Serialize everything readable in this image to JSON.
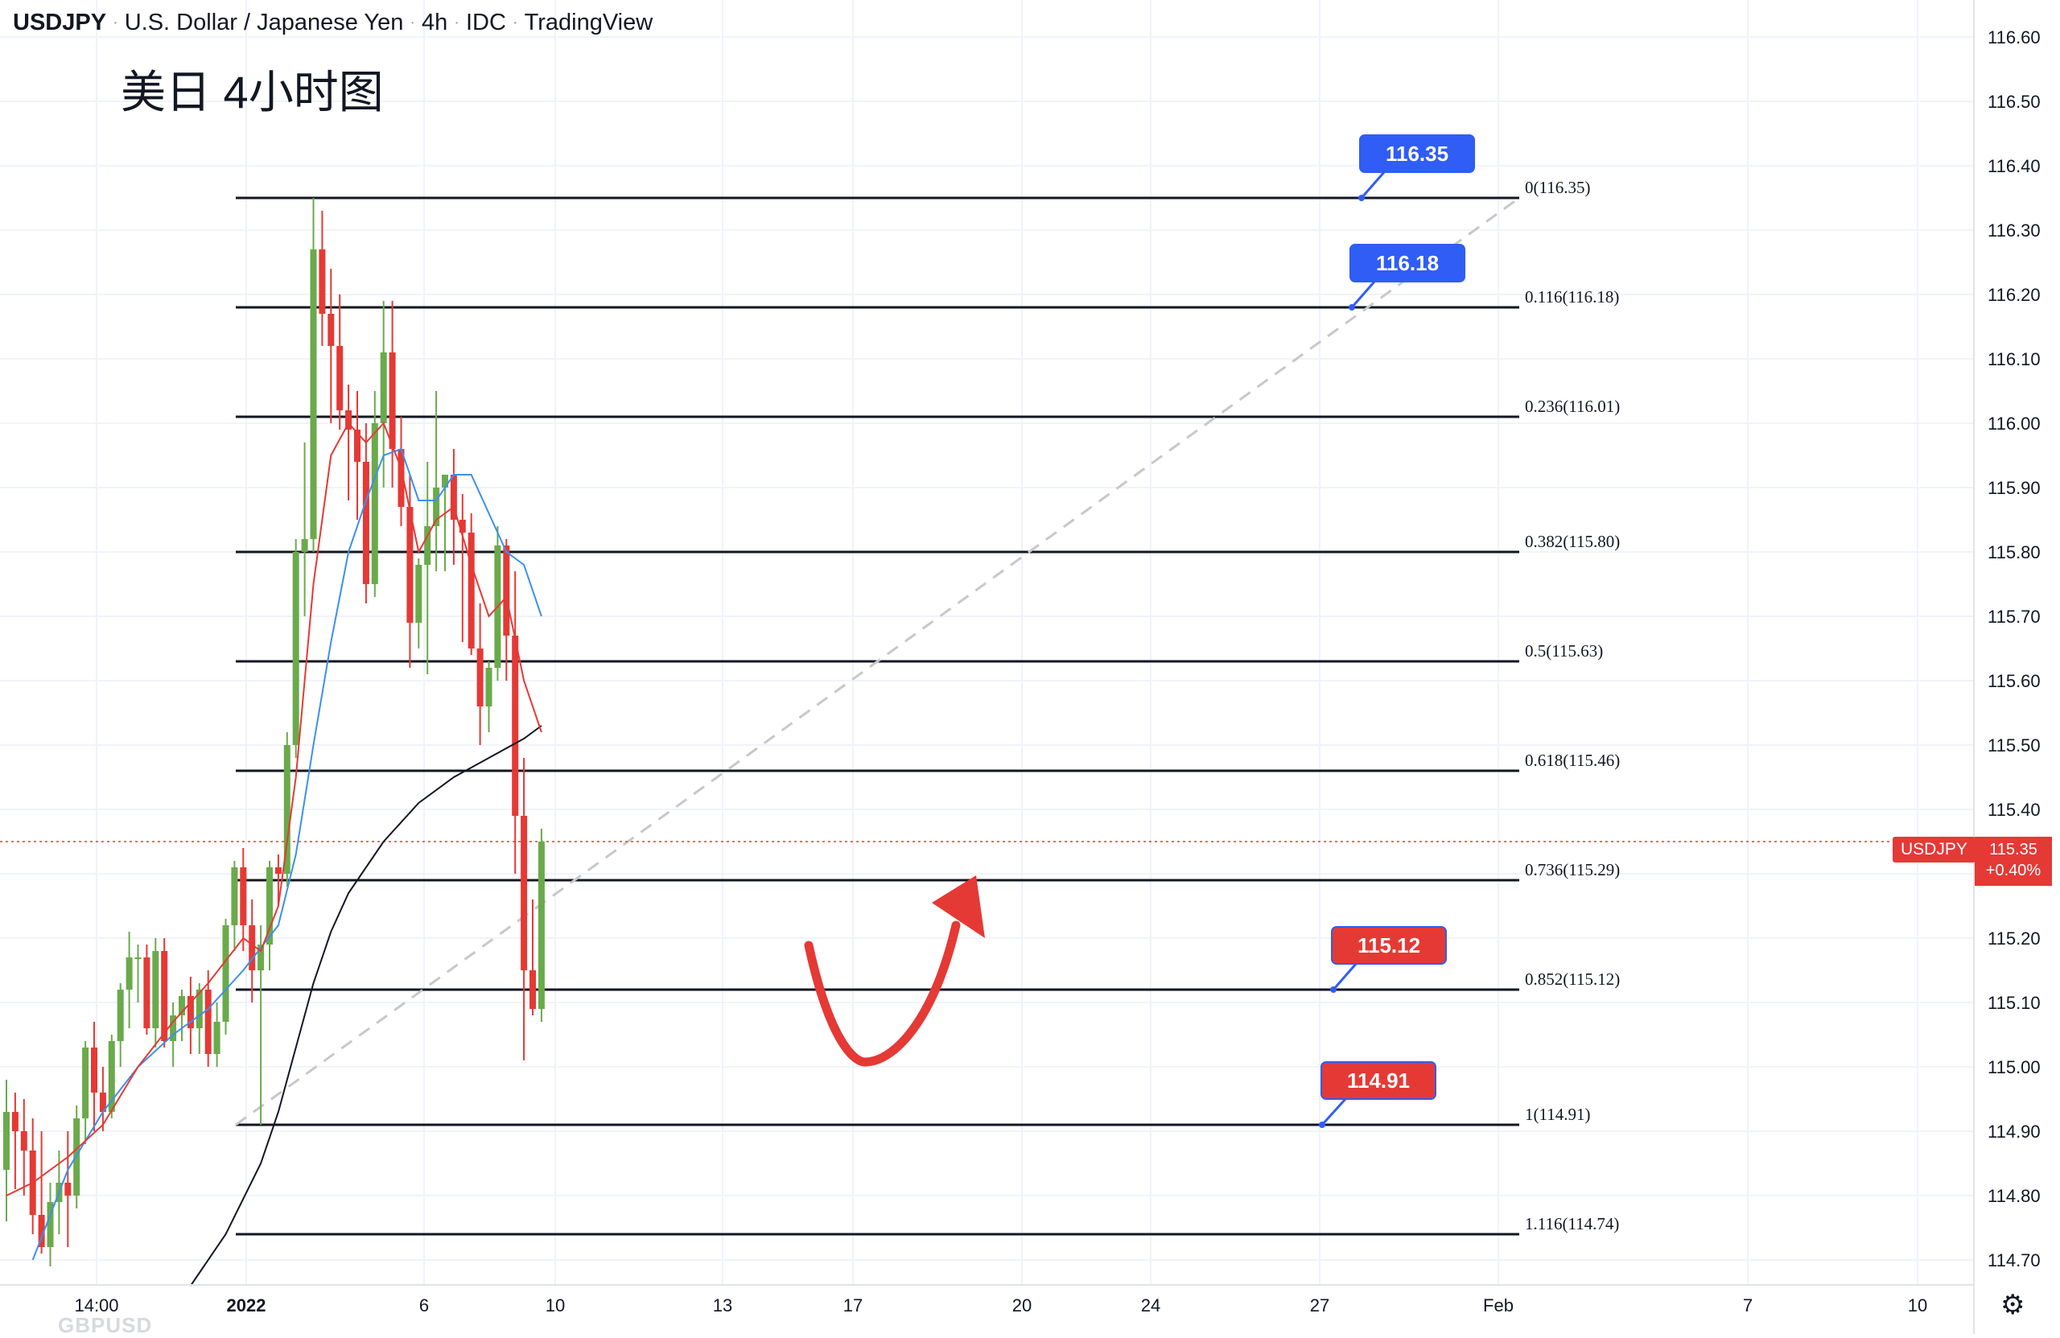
{
  "header": {
    "symbol": "USDJPY",
    "description": "U.S. Dollar / Japanese Yen",
    "interval": "4h",
    "source": "IDC",
    "platform": "TradingView"
  },
  "subtitle": "美日 4小时图",
  "watermark": "GBPUSD",
  "current_price": {
    "symbol_label": "USDJPY",
    "price": "115.35",
    "change": "+0.40%",
    "value": 115.35
  },
  "icons": {
    "settings": "gear-icon"
  },
  "colors": {
    "bull": "#6aaa4b",
    "bear": "#e53935",
    "ma_fast": "#e53935",
    "ma_mid": "#3b8ff0",
    "ma_slow": "#131722",
    "fib_line": "#131722",
    "trend_dash": "#c8c8c8",
    "label_blue": "#2f5df5",
    "label_red": "#e53935"
  },
  "chart_data": {
    "type": "candlestick",
    "y_ticks": [
      "116.60",
      "116.50",
      "116.40",
      "116.30",
      "116.20",
      "116.10",
      "116.00",
      "115.90",
      "115.80",
      "115.70",
      "115.60",
      "115.50",
      "115.40",
      "115.30",
      "115.20",
      "115.10",
      "115.00",
      "114.90",
      "114.80",
      "114.70"
    ],
    "x_ticks": [
      "14:00",
      "2022",
      "6",
      "10",
      "13",
      "17",
      "20",
      "24",
      "27",
      "Feb",
      "7",
      "10"
    ],
    "ylim": [
      114.68,
      116.66
    ],
    "fib_levels": [
      {
        "ratio": "0",
        "price": 116.35,
        "label": "0(116.35)"
      },
      {
        "ratio": "0.116",
        "price": 116.18,
        "label": "0.116(116.18)"
      },
      {
        "ratio": "0.236",
        "price": 116.01,
        "label": "0.236(116.01)"
      },
      {
        "ratio": "0.382",
        "price": 115.8,
        "label": "0.382(115.80)"
      },
      {
        "ratio": "0.5",
        "price": 115.63,
        "label": "0.5(115.63)"
      },
      {
        "ratio": "0.618",
        "price": 115.46,
        "label": "0.618(115.46)"
      },
      {
        "ratio": "0.736",
        "price": 115.29,
        "label": "0.736(115.29)"
      },
      {
        "ratio": "0.852",
        "price": 115.12,
        "label": "0.852(115.12)"
      },
      {
        "ratio": "1",
        "price": 114.91,
        "label": "1(114.91)"
      },
      {
        "ratio": "1.116",
        "price": 114.74,
        "label": "1.116(114.74)"
      }
    ],
    "price_callouts": [
      {
        "text": "116.35",
        "price": 116.35,
        "color": "blue"
      },
      {
        "text": "116.18",
        "price": 116.18,
        "color": "blue"
      },
      {
        "text": "115.12",
        "price": 115.12,
        "color": "red"
      },
      {
        "text": "114.91",
        "price": 114.91,
        "color": "red"
      }
    ],
    "candles": [
      {
        "o": 114.84,
        "h": 114.98,
        "l": 114.76,
        "c": 114.93
      },
      {
        "o": 114.93,
        "h": 114.96,
        "l": 114.81,
        "c": 114.9
      },
      {
        "o": 114.9,
        "h": 114.95,
        "l": 114.8,
        "c": 114.87
      },
      {
        "o": 114.87,
        "h": 114.92,
        "l": 114.74,
        "c": 114.77
      },
      {
        "o": 114.77,
        "h": 114.9,
        "l": 114.71,
        "c": 114.72
      },
      {
        "o": 114.72,
        "h": 114.82,
        "l": 114.69,
        "c": 114.79
      },
      {
        "o": 114.79,
        "h": 114.87,
        "l": 114.74,
        "c": 114.82
      },
      {
        "o": 114.82,
        "h": 114.9,
        "l": 114.72,
        "c": 114.8
      },
      {
        "o": 114.8,
        "h": 114.94,
        "l": 114.78,
        "c": 114.92
      },
      {
        "o": 114.92,
        "h": 115.04,
        "l": 114.88,
        "c": 115.03
      },
      {
        "o": 115.03,
        "h": 115.07,
        "l": 114.9,
        "c": 114.96
      },
      {
        "o": 114.96,
        "h": 115.0,
        "l": 114.9,
        "c": 114.93
      },
      {
        "o": 114.93,
        "h": 115.05,
        "l": 114.92,
        "c": 115.04
      },
      {
        "o": 115.04,
        "h": 115.13,
        "l": 115.0,
        "c": 115.12
      },
      {
        "o": 115.12,
        "h": 115.21,
        "l": 115.06,
        "c": 115.17
      },
      {
        "o": 115.17,
        "h": 115.19,
        "l": 115.1,
        "c": 115.17
      },
      {
        "o": 115.17,
        "h": 115.19,
        "l": 115.05,
        "c": 115.06
      },
      {
        "o": 115.06,
        "h": 115.2,
        "l": 115.03,
        "c": 115.18
      },
      {
        "o": 115.18,
        "h": 115.2,
        "l": 115.03,
        "c": 115.04
      },
      {
        "o": 115.04,
        "h": 115.1,
        "l": 115.0,
        "c": 115.08
      },
      {
        "o": 115.08,
        "h": 115.12,
        "l": 115.04,
        "c": 115.11
      },
      {
        "o": 115.11,
        "h": 115.14,
        "l": 115.02,
        "c": 115.06
      },
      {
        "o": 115.06,
        "h": 115.13,
        "l": 115.02,
        "c": 115.12
      },
      {
        "o": 115.12,
        "h": 115.15,
        "l": 115.0,
        "c": 115.02
      },
      {
        "o": 115.02,
        "h": 115.1,
        "l": 115.0,
        "c": 115.07
      },
      {
        "o": 115.07,
        "h": 115.23,
        "l": 115.05,
        "c": 115.22
      },
      {
        "o": 115.22,
        "h": 115.32,
        "l": 115.18,
        "c": 115.31
      },
      {
        "o": 115.31,
        "h": 115.34,
        "l": 115.18,
        "c": 115.22
      },
      {
        "o": 115.22,
        "h": 115.26,
        "l": 115.1,
        "c": 115.15
      },
      {
        "o": 115.15,
        "h": 115.22,
        "l": 114.91,
        "c": 115.19
      },
      {
        "o": 115.19,
        "h": 115.32,
        "l": 115.15,
        "c": 115.31
      },
      {
        "o": 115.31,
        "h": 115.33,
        "l": 115.25,
        "c": 115.3
      },
      {
        "o": 115.3,
        "h": 115.52,
        "l": 115.28,
        "c": 115.5
      },
      {
        "o": 115.5,
        "h": 115.82,
        "l": 115.48,
        "c": 115.8
      },
      {
        "o": 115.8,
        "h": 115.97,
        "l": 115.7,
        "c": 115.82
      },
      {
        "o": 115.82,
        "h": 116.35,
        "l": 115.8,
        "c": 116.27
      },
      {
        "o": 116.27,
        "h": 116.33,
        "l": 116.12,
        "c": 116.17
      },
      {
        "o": 116.17,
        "h": 116.24,
        "l": 116.0,
        "c": 116.12
      },
      {
        "o": 116.12,
        "h": 116.2,
        "l": 115.99,
        "c": 116.02
      },
      {
        "o": 116.02,
        "h": 116.06,
        "l": 115.88,
        "c": 115.99
      },
      {
        "o": 115.99,
        "h": 116.05,
        "l": 115.85,
        "c": 115.94
      },
      {
        "o": 115.94,
        "h": 116.0,
        "l": 115.72,
        "c": 115.75
      },
      {
        "o": 115.75,
        "h": 116.05,
        "l": 115.73,
        "c": 116.0
      },
      {
        "o": 116.0,
        "h": 116.19,
        "l": 115.9,
        "c": 116.11
      },
      {
        "o": 116.11,
        "h": 116.19,
        "l": 115.9,
        "c": 115.96
      },
      {
        "o": 115.96,
        "h": 116.01,
        "l": 115.84,
        "c": 115.87
      },
      {
        "o": 115.87,
        "h": 115.92,
        "l": 115.62,
        "c": 115.69
      },
      {
        "o": 115.69,
        "h": 115.79,
        "l": 115.65,
        "c": 115.78
      },
      {
        "o": 115.78,
        "h": 115.94,
        "l": 115.61,
        "c": 115.84
      },
      {
        "o": 115.84,
        "h": 116.05,
        "l": 115.77,
        "c": 115.9
      },
      {
        "o": 115.9,
        "h": 115.92,
        "l": 115.77,
        "c": 115.92
      },
      {
        "o": 115.92,
        "h": 115.96,
        "l": 115.78,
        "c": 115.85
      },
      {
        "o": 115.85,
        "h": 115.89,
        "l": 115.66,
        "c": 115.83
      },
      {
        "o": 115.83,
        "h": 115.86,
        "l": 115.64,
        "c": 115.65
      },
      {
        "o": 115.65,
        "h": 115.72,
        "l": 115.5,
        "c": 115.56
      },
      {
        "o": 115.56,
        "h": 115.63,
        "l": 115.52,
        "c": 115.62
      },
      {
        "o": 115.62,
        "h": 115.84,
        "l": 115.6,
        "c": 115.81
      },
      {
        "o": 115.81,
        "h": 115.82,
        "l": 115.6,
        "c": 115.67
      },
      {
        "o": 115.67,
        "h": 115.77,
        "l": 115.3,
        "c": 115.39
      },
      {
        "o": 115.39,
        "h": 115.48,
        "l": 115.01,
        "c": 115.15
      },
      {
        "o": 115.15,
        "h": 115.26,
        "l": 115.08,
        "c": 115.09
      },
      {
        "o": 115.09,
        "h": 115.37,
        "l": 115.07,
        "c": 115.35
      }
    ],
    "ma_fast": [
      [
        0,
        114.8
      ],
      [
        3,
        114.82
      ],
      [
        7,
        114.86
      ],
      [
        11,
        114.91
      ],
      [
        15,
        115.0
      ],
      [
        19,
        115.07
      ],
      [
        23,
        115.13
      ],
      [
        27,
        115.2
      ],
      [
        29,
        115.18
      ],
      [
        31,
        115.25
      ],
      [
        33,
        115.45
      ],
      [
        35,
        115.75
      ],
      [
        37,
        115.95
      ],
      [
        39,
        116.0
      ],
      [
        41,
        115.97
      ],
      [
        43,
        116.0
      ],
      [
        45,
        115.93
      ],
      [
        47,
        115.8
      ],
      [
        49,
        115.85
      ],
      [
        51,
        115.87
      ],
      [
        53,
        115.78
      ],
      [
        55,
        115.7
      ],
      [
        57,
        115.73
      ],
      [
        59,
        115.6
      ],
      [
        61,
        115.52
      ]
    ],
    "ma_mid": [
      [
        3,
        114.7
      ],
      [
        7,
        114.84
      ],
      [
        11,
        114.93
      ],
      [
        15,
        115.0
      ],
      [
        19,
        115.05
      ],
      [
        23,
        115.09
      ],
      [
        27,
        115.15
      ],
      [
        31,
        115.22
      ],
      [
        33,
        115.33
      ],
      [
        35,
        115.5
      ],
      [
        37,
        115.66
      ],
      [
        39,
        115.8
      ],
      [
        41,
        115.88
      ],
      [
        43,
        115.95
      ],
      [
        45,
        115.96
      ],
      [
        47,
        115.88
      ],
      [
        49,
        115.88
      ],
      [
        51,
        115.92
      ],
      [
        53,
        115.92
      ],
      [
        55,
        115.86
      ],
      [
        57,
        115.8
      ],
      [
        59,
        115.78
      ],
      [
        61,
        115.7
      ]
    ],
    "ma_slow": [
      [
        21,
        114.66
      ],
      [
        25,
        114.74
      ],
      [
        29,
        114.85
      ],
      [
        31,
        114.93
      ],
      [
        33,
        115.03
      ],
      [
        35,
        115.13
      ],
      [
        37,
        115.21
      ],
      [
        39,
        115.27
      ],
      [
        43,
        115.35
      ],
      [
        47,
        115.41
      ],
      [
        51,
        115.45
      ],
      [
        55,
        115.48
      ],
      [
        59,
        115.51
      ],
      [
        61,
        115.53
      ]
    ]
  }
}
